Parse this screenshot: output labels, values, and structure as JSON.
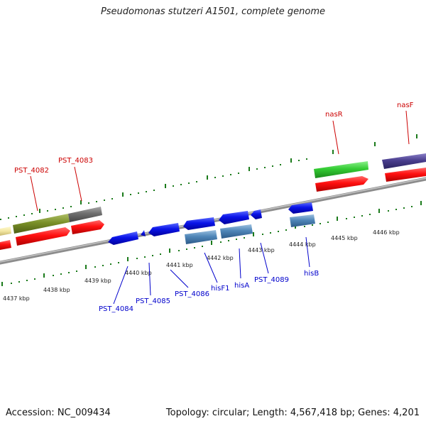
{
  "title": "Pseudomonas stutzeri A1501, complete genome",
  "footer": {
    "accession": "Accession: NC_009434",
    "stats": "Topology: circular; Length: 4,567,418 bp; Genes: 4,201"
  },
  "colors": {
    "forward_label": "#cc0000",
    "reverse_label": "#0000cc",
    "cds": "#ff0000",
    "reverse_gene": "#0000e8",
    "rna_like": "#4f86b8",
    "tick": "#1a7a1a",
    "backbone": "#8c8c8c"
  },
  "scale_labels": [
    "4437 kbp",
    "4438 kbp",
    "4439 kbp",
    "4440 kbp",
    "4441 kbp",
    "4442 kbp",
    "4443 kbp",
    "4444 kbp",
    "4445 kbp",
    "4446 kbp"
  ],
  "forward_labels": [
    "PST_4082",
    "PST_4083",
    "nasR",
    "nasF"
  ],
  "reverse_labels": [
    "PST_4084",
    "PST_4085",
    "PST_4086",
    "hisF1",
    "hisA",
    "PST_4089",
    "hisB"
  ]
}
